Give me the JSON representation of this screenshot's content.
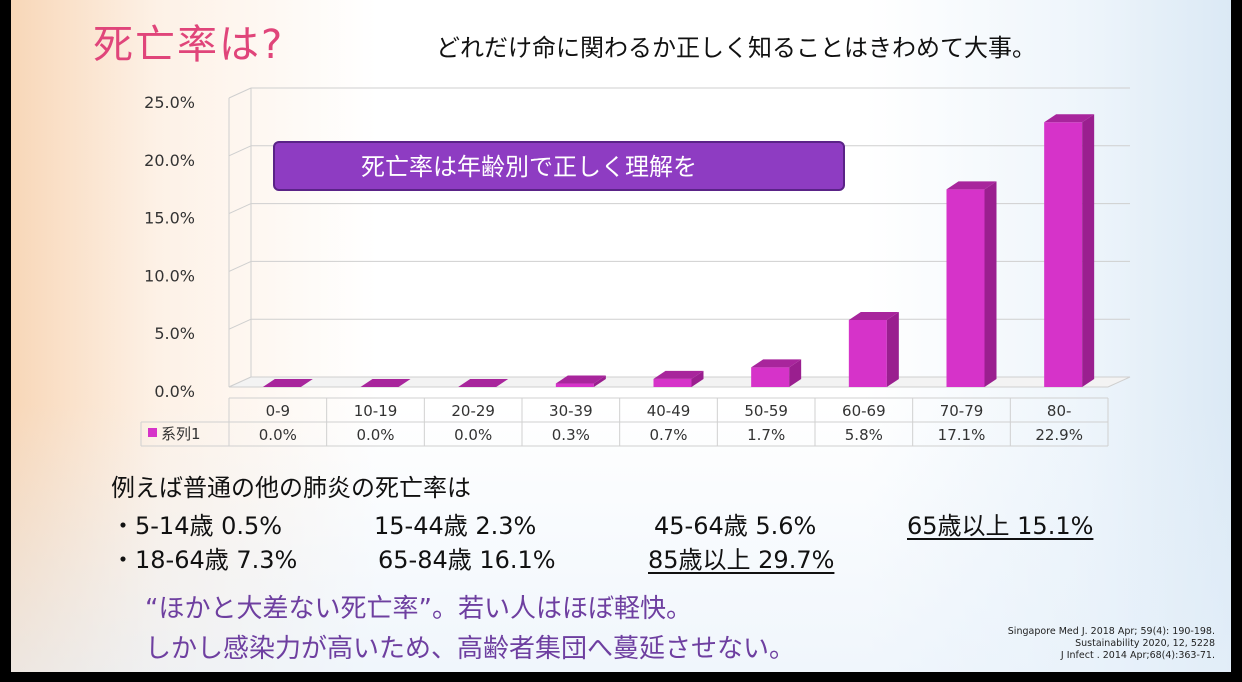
{
  "title": "死亡率は?",
  "subtitle": "どれだけ命に関わるか正しく知ることはきわめて大事。",
  "banner": "死亡率は年齢別で正しく理解を",
  "colors": {
    "bar": "#d633c9",
    "bar_side": "#9a1f8f",
    "bar_top": "#a8259c",
    "banner": "#8e3cc2",
    "title": "#e0457a",
    "text_purple": "#6e3fa0"
  },
  "chart_data": {
    "type": "bar",
    "categories": [
      "0-9",
      "10-19",
      "20-29",
      "30-39",
      "40-49",
      "50-59",
      "60-69",
      "70-79",
      "80-"
    ],
    "series": [
      {
        "name": "系列1",
        "values": [
          0.0,
          0.0,
          0.0,
          0.3,
          0.7,
          1.7,
          5.8,
          17.1,
          22.9
        ]
      }
    ],
    "data_labels": [
      "0.0%",
      "0.0%",
      "0.0%",
      "0.3%",
      "0.7%",
      "1.7%",
      "5.8%",
      "17.1%",
      "22.9%"
    ],
    "yticks": [
      "0.0%",
      "5.0%",
      "10.0%",
      "15.0%",
      "20.0%",
      "25.0%"
    ],
    "ylim": [
      0,
      25
    ],
    "grid": true,
    "legend": "data-table"
  },
  "info": {
    "heading": "例えば普通の他の肺炎の死亡率は",
    "line1": [
      {
        "text": "・5-14歳 0.5%"
      },
      {
        "text": "15-44歳 2.3%"
      },
      {
        "text": "45-64歳 5.6%"
      },
      {
        "text": "65歳以上 15.1%"
      }
    ],
    "line2": [
      {
        "text": "・18-64歳 7.3%"
      },
      {
        "text": "65-84歳 16.1%"
      },
      {
        "text": "85歳以上 29.7%"
      }
    ]
  },
  "message": {
    "line1": "“ほかと大差ない死亡率”。若い人はほぼ軽快。",
    "line2": "しかし感染力が高いため、高齢者集団へ蔓延させない。"
  },
  "citations": [
    "Singapore Med J. 2018 Apr; 59(4): 190-198.",
    "Sustainability 2020, 12, 5228",
    "J Infect . 2014 Apr;68(4):363-71."
  ]
}
